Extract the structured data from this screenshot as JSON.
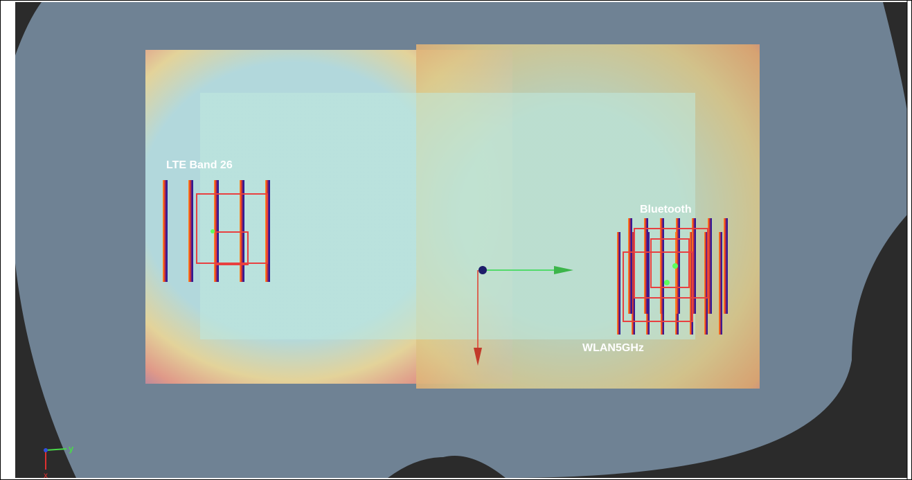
{
  "labels": {
    "lte": "LTE Band 26",
    "bluetooth": "Bluetooth",
    "wlan": "WLAN5GHz"
  },
  "triad": {
    "y": "y",
    "x": "x"
  }
}
